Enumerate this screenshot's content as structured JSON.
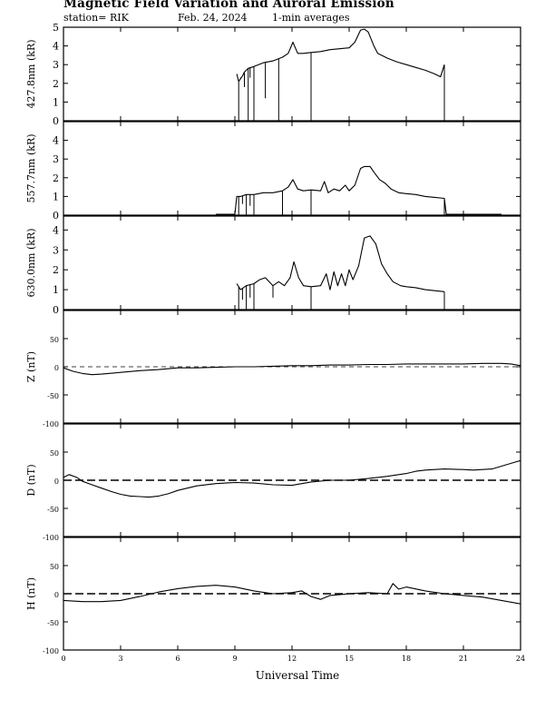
{
  "header": {
    "title": "Magnetic Field Variation and Auroral Emission",
    "station": "station= RIK",
    "date": "Feb. 24, 2024",
    "averaging": "1-min averages"
  },
  "chart_data": {
    "type": "line",
    "xlabel": "Universal Time",
    "xlim": [
      0,
      24
    ],
    "xticks": [
      0,
      3,
      6,
      9,
      12,
      15,
      18,
      21,
      24
    ],
    "panels": [
      {
        "id": "427.8nm",
        "ylabel": "427.8nm (kR)",
        "ylim": [
          0,
          5
        ],
        "yticks": [
          0,
          1,
          2,
          3,
          4,
          5
        ],
        "series": [
          {
            "x": [
              9.1,
              9.2,
              9.4,
              9.5,
              9.7,
              10.0,
              10.5,
              11.0,
              11.5,
              11.8,
              12.05,
              12.3,
              12.6,
              13.0,
              13.5,
              14.0,
              14.5,
              15.0,
              15.3,
              15.6,
              15.8,
              16.0,
              16.3,
              16.5,
              17.0,
              17.5,
              18.0,
              18.5,
              19.0,
              19.5,
              19.8,
              20.0
            ],
            "y": [
              2.5,
              2.1,
              2.4,
              2.6,
              2.8,
              2.9,
              3.1,
              3.2,
              3.4,
              3.6,
              4.2,
              3.6,
              3.6,
              3.65,
              3.7,
              3.8,
              3.85,
              3.9,
              4.2,
              4.85,
              4.9,
              4.75,
              4.0,
              3.6,
              3.35,
              3.15,
              3.0,
              2.85,
              2.7,
              2.5,
              2.35,
              3.0
            ]
          }
        ],
        "dips": [
          [
            9.2,
            0
          ],
          [
            9.3,
            2.3
          ],
          [
            9.5,
            1.8
          ],
          [
            9.7,
            0
          ],
          [
            9.8,
            2.3
          ],
          [
            10.0,
            0
          ],
          [
            10.6,
            1.2
          ],
          [
            11.3,
            0
          ],
          [
            13.0,
            0
          ],
          [
            20.0,
            0
          ]
        ]
      },
      {
        "id": "557.7nm",
        "ylabel": "557.7nm (kR)",
        "ylim": [
          0,
          5
        ],
        "yticks": [
          0,
          1,
          2,
          3,
          4
        ],
        "series": [
          {
            "x": [
              8.0,
              9.0,
              9.1,
              9.3,
              9.6,
              10.0,
              10.5,
              11.0,
              11.5,
              11.8,
              12.05,
              12.3,
              12.6,
              13.0,
              13.5,
              13.7,
              13.9,
              14.2,
              14.5,
              14.8,
              15.0,
              15.3,
              15.6,
              15.8,
              16.1,
              16.3,
              16.6,
              16.9,
              17.2,
              17.6,
              18.0,
              18.5,
              19.0,
              19.5,
              20.0,
              20.1,
              21.0,
              22.0,
              23.0
            ],
            "y": [
              0.05,
              0.05,
              1.0,
              1.0,
              1.1,
              1.1,
              1.2,
              1.2,
              1.3,
              1.5,
              1.9,
              1.4,
              1.3,
              1.35,
              1.3,
              1.8,
              1.2,
              1.4,
              1.3,
              1.6,
              1.3,
              1.6,
              2.5,
              2.6,
              2.6,
              2.3,
              1.9,
              1.7,
              1.4,
              1.2,
              1.15,
              1.1,
              1.0,
              0.95,
              0.9,
              0.05,
              0.05,
              0.05,
              0.05
            ]
          }
        ],
        "dips": [
          [
            9.2,
            0
          ],
          [
            9.4,
            0.6
          ],
          [
            9.6,
            0
          ],
          [
            9.8,
            0.5
          ],
          [
            10.0,
            0
          ],
          [
            11.5,
            0
          ],
          [
            13.0,
            0
          ],
          [
            20.0,
            0
          ]
        ]
      },
      {
        "id": "630.0nm",
        "ylabel": "630.0nm (kR)",
        "ylim": [
          0,
          4.7
        ],
        "yticks": [
          0,
          1,
          2,
          3,
          4
        ],
        "series": [
          {
            "x": [
              9.1,
              9.3,
              9.6,
              10.0,
              10.3,
              10.6,
              11.0,
              11.3,
              11.6,
              11.9,
              12.1,
              12.35,
              12.6,
              13.0,
              13.5,
              13.8,
              14.0,
              14.2,
              14.4,
              14.6,
              14.8,
              15.0,
              15.2,
              15.5,
              15.8,
              16.1,
              16.4,
              16.7,
              17.0,
              17.3,
              17.7,
              18.0,
              18.5,
              19.0,
              19.5,
              20.0
            ],
            "y": [
              1.3,
              1.0,
              1.2,
              1.3,
              1.5,
              1.6,
              1.2,
              1.4,
              1.2,
              1.6,
              2.4,
              1.6,
              1.2,
              1.15,
              1.2,
              1.8,
              1.0,
              1.9,
              1.2,
              1.8,
              1.2,
              2.0,
              1.5,
              2.2,
              3.6,
              3.7,
              3.3,
              2.3,
              1.8,
              1.4,
              1.2,
              1.15,
              1.1,
              1.0,
              0.95,
              0.9
            ]
          }
        ],
        "dips": [
          [
            9.2,
            0
          ],
          [
            9.4,
            0.5
          ],
          [
            9.6,
            0
          ],
          [
            9.8,
            0.6
          ],
          [
            10.0,
            0
          ],
          [
            11.0,
            0.6
          ],
          [
            13.0,
            0
          ],
          [
            20.0,
            0
          ]
        ]
      },
      {
        "id": "Z",
        "ylabel": "Z (nT)",
        "ylim": [
          -100,
          100
        ],
        "yticks": [
          -100,
          -50,
          0,
          50
        ],
        "series": [
          {
            "x": [
              0,
              0.5,
              1,
              1.5,
              2,
              3,
              4,
              5,
              6,
              7,
              8,
              9,
              10,
              11,
              12,
              13,
              14,
              15,
              16,
              17,
              18,
              19,
              20,
              21,
              22,
              23,
              23.5,
              24
            ],
            "y": [
              -2,
              -8,
              -12,
              -14,
              -13,
              -10,
              -7,
              -5,
              -2,
              -2,
              -1,
              0,
              0,
              1,
              2,
              2,
              3,
              3,
              4,
              4,
              5,
              5,
              5,
              5,
              6,
              6,
              5,
              2
            ]
          }
        ]
      },
      {
        "id": "D",
        "ylabel": "D (nT)",
        "ylim": [
          -100,
          100
        ],
        "yticks": [
          -100,
          -50,
          0,
          50
        ],
        "series": [
          {
            "x": [
              0,
              0.3,
              0.7,
              1,
              1.5,
              2,
              2.5,
              3,
              3.5,
              4,
              4.5,
              5,
              5.5,
              6,
              7,
              8,
              9,
              10,
              11,
              12,
              13,
              14,
              15,
              16,
              17,
              18,
              18.5,
              19,
              20,
              21,
              21.5,
              22,
              22.5,
              23,
              23.5,
              24
            ],
            "y": [
              5,
              10,
              5,
              -2,
              -8,
              -14,
              -20,
              -25,
              -28,
              -29,
              -30,
              -28,
              -24,
              -18,
              -10,
              -6,
              -4,
              -5,
              -8,
              -9,
              -3,
              0,
              0,
              3,
              7,
              12,
              16,
              18,
              20,
              19,
              18,
              19,
              20,
              25,
              30,
              35
            ]
          }
        ]
      },
      {
        "id": "H",
        "ylabel": "H (nT)",
        "ylim": [
          -100,
          100
        ],
        "yticks": [
          -100,
          -50,
          0,
          50
        ],
        "series": [
          {
            "x": [
              0,
              1,
              2,
              3,
              4,
              5,
              6,
              7,
              8,
              9,
              10,
              11,
              12,
              12.5,
              13,
              13.5,
              14,
              15,
              16,
              17,
              17.3,
              17.6,
              18,
              19,
              20,
              21,
              22,
              23,
              24
            ],
            "y": [
              -12,
              -14,
              -14,
              -12,
              -5,
              3,
              9,
              13,
              15,
              12,
              5,
              0,
              2,
              5,
              -5,
              -10,
              -3,
              0,
              2,
              0,
              18,
              8,
              12,
              5,
              0,
              -3,
              -6,
              -12,
              -18
            ]
          }
        ]
      }
    ]
  }
}
